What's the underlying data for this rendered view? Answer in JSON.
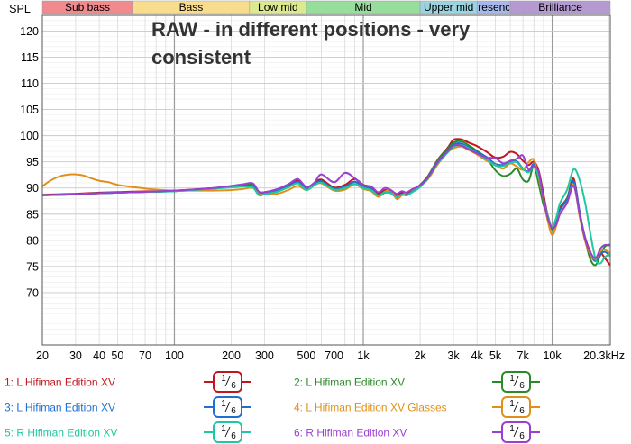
{
  "chart_data": {
    "type": "line",
    "title_lines": [
      "RAW - in different positions - very",
      "consistent"
    ],
    "ylabel": "SPL",
    "ylim": [
      60,
      123
    ],
    "xlim_hz": [
      20,
      20300
    ],
    "x_scale": "log",
    "y_ticks": [
      120,
      115,
      110,
      105,
      100,
      95,
      90,
      85,
      80,
      75,
      70
    ],
    "x_ticks": [
      {
        "hz": 20,
        "label": "20"
      },
      {
        "hz": 30,
        "label": "30"
      },
      {
        "hz": 40,
        "label": "40"
      },
      {
        "hz": 50,
        "label": "50"
      },
      {
        "hz": 70,
        "label": "70"
      },
      {
        "hz": 100,
        "label": "100"
      },
      {
        "hz": 200,
        "label": "200"
      },
      {
        "hz": 300,
        "label": "300"
      },
      {
        "hz": 500,
        "label": "500"
      },
      {
        "hz": 700,
        "label": "700"
      },
      {
        "hz": 1000,
        "label": "1k"
      },
      {
        "hz": 2000,
        "label": "2k"
      },
      {
        "hz": 3000,
        "label": "3k"
      },
      {
        "hz": 4000,
        "label": "4k"
      },
      {
        "hz": 5000,
        "label": "5k"
      },
      {
        "hz": 7000,
        "label": "7k"
      },
      {
        "hz": 10000,
        "label": "10k"
      },
      {
        "hz": 20300,
        "label": "20.3kHz"
      }
    ],
    "bands": [
      {
        "label": "Sub bass",
        "from_hz": 20,
        "to_hz": 60,
        "color": "#f08a8f"
      },
      {
        "label": "Bass",
        "from_hz": 60,
        "to_hz": 250,
        "color": "#f9dd8e"
      },
      {
        "label": "Low mid",
        "from_hz": 250,
        "to_hz": 500,
        "color": "#dde98f"
      },
      {
        "label": "Mid",
        "from_hz": 500,
        "to_hz": 2000,
        "color": "#97dd9b"
      },
      {
        "label": "Upper mid",
        "from_hz": 2000,
        "to_hz": 4000,
        "color": "#9ad4e0"
      },
      {
        "label": "Presence",
        "from_hz": 4000,
        "to_hz": 6000,
        "color": "#a8b8ec"
      },
      {
        "label": "Brilliance",
        "from_hz": 6000,
        "to_hz": 20300,
        "color": "#b49ad0"
      }
    ],
    "series": [
      {
        "name": "1: L Hifiman Edition XV",
        "smoothing": "1/6",
        "color": "#c0161f",
        "x": [
          20,
          30,
          40,
          60,
          100,
          150,
          200,
          230,
          260,
          280,
          300,
          350,
          400,
          450,
          500,
          550,
          600,
          700,
          800,
          900,
          1000,
          1100,
          1200,
          1300,
          1400,
          1500,
          1600,
          1700,
          1800,
          2000,
          2200,
          2500,
          2800,
          3000,
          3300,
          3600,
          4000,
          4500,
          5000,
          5500,
          6000,
          6500,
          7000,
          7500,
          8000,
          8500,
          9000,
          9500,
          10000,
          10500,
          11000,
          12000,
          13000,
          14000,
          15000,
          16000,
          17000,
          18000,
          19000,
          20300
        ],
        "y": [
          88.7,
          88.9,
          89.1,
          89.3,
          89.5,
          89.9,
          90.2,
          90.6,
          90.4,
          89.2,
          89.2,
          89.7,
          90.5,
          91.5,
          90.1,
          90.9,
          91.6,
          90.1,
          90.6,
          91.7,
          90.6,
          90.2,
          88.9,
          89.6,
          89.5,
          88.6,
          89.1,
          88.9,
          89.5,
          90.6,
          92.3,
          95.6,
          97.7,
          99.2,
          99.3,
          98.7,
          98.0,
          96.9,
          95.8,
          96.0,
          96.9,
          96.5,
          95.2,
          94.4,
          95.0,
          93.2,
          88.7,
          84.5,
          82.4,
          83.6,
          86.2,
          88.1,
          91.8,
          85.0,
          80.3,
          77.6,
          76.1,
          77.5,
          76.6,
          75.2
        ]
      },
      {
        "name": "2: L Hifiman Edition XV",
        "smoothing": "1/6",
        "color": "#2a8a2a",
        "x": [
          20,
          30,
          40,
          60,
          100,
          150,
          200,
          230,
          260,
          280,
          300,
          350,
          400,
          450,
          500,
          550,
          600,
          700,
          800,
          900,
          1000,
          1100,
          1200,
          1300,
          1400,
          1500,
          1600,
          1700,
          1800,
          2000,
          2200,
          2500,
          2800,
          3000,
          3300,
          3600,
          4000,
          4500,
          5000,
          5500,
          6000,
          6500,
          7000,
          7500,
          8000,
          8500,
          9000,
          9500,
          10000,
          10500,
          11000,
          12000,
          13000,
          14000,
          15000,
          16000,
          17000,
          18000,
          19000,
          20300
        ],
        "y": [
          88.6,
          88.8,
          89.0,
          89.2,
          89.4,
          89.8,
          90.3,
          90.5,
          90.6,
          88.9,
          89.0,
          89.3,
          90.2,
          91.1,
          89.9,
          90.6,
          91.2,
          89.9,
          90.1,
          91.2,
          90.2,
          89.8,
          88.4,
          89.1,
          89.0,
          88.2,
          88.7,
          88.6,
          89.2,
          90.6,
          92.3,
          95.5,
          97.5,
          98.7,
          98.9,
          98.2,
          97.1,
          95.7,
          93.4,
          92.3,
          92.7,
          93.7,
          91.6,
          91.4,
          94.2,
          90.6,
          86.7,
          84.6,
          82.0,
          83.8,
          85.9,
          88.1,
          91.1,
          85.2,
          79.8,
          76.2,
          75.3,
          77.2,
          78.8,
          79.2
        ]
      },
      {
        "name": "3: L Hifiman Edition XV",
        "smoothing": "1/6",
        "color": "#1f6fd0",
        "x": [
          20,
          30,
          40,
          60,
          100,
          150,
          200,
          230,
          260,
          280,
          300,
          350,
          400,
          450,
          500,
          550,
          600,
          700,
          800,
          900,
          1000,
          1100,
          1200,
          1300,
          1400,
          1500,
          1600,
          1700,
          1800,
          2000,
          2200,
          2500,
          2800,
          3000,
          3300,
          3600,
          4000,
          4500,
          5000,
          5500,
          6000,
          6500,
          7000,
          7500,
          8000,
          8500,
          9000,
          9500,
          10000,
          10500,
          11000,
          12000,
          13000,
          14000,
          15000,
          16000,
          17000,
          18000,
          19000,
          20300
        ],
        "y": [
          88.6,
          88.8,
          89.0,
          89.2,
          89.4,
          89.8,
          90.2,
          90.5,
          90.3,
          89.0,
          89.1,
          89.5,
          90.3,
          91.2,
          89.8,
          90.7,
          91.3,
          89.9,
          90.3,
          91.2,
          90.3,
          89.9,
          88.5,
          89.2,
          89.1,
          88.3,
          88.8,
          88.7,
          89.2,
          90.4,
          92.1,
          95.2,
          97.1,
          98.3,
          98.5,
          97.8,
          96.9,
          95.9,
          94.6,
          94.4,
          94.9,
          95.1,
          93.7,
          93.2,
          94.6,
          92.6,
          87.9,
          84.2,
          82.3,
          83.6,
          85.8,
          87.9,
          91.3,
          85.2,
          80.1,
          77.1,
          76.0,
          77.3,
          77.8,
          77.0
        ]
      },
      {
        "name": "4: L Hifiman Edition XV Glasses",
        "smoothing": "1/6",
        "color": "#e0901a",
        "x": [
          20,
          22,
          25,
          28,
          30,
          33,
          36,
          40,
          45,
          50,
          60,
          70,
          80,
          100,
          130,
          160,
          200,
          230,
          260,
          280,
          300,
          350,
          400,
          450,
          500,
          550,
          600,
          700,
          800,
          900,
          1000,
          1100,
          1200,
          1300,
          1400,
          1500,
          1600,
          1700,
          1800,
          2000,
          2200,
          2500,
          2800,
          3000,
          3300,
          3600,
          4000,
          4500,
          5000,
          5500,
          6000,
          6500,
          7000,
          7500,
          8000,
          8500,
          9000,
          9500,
          10000,
          10500,
          11000,
          12000,
          13000,
          14000,
          15000,
          16000,
          17000,
          18000,
          19000,
          20300
        ],
        "y": [
          90.3,
          91.4,
          92.3,
          92.6,
          92.6,
          92.4,
          91.9,
          91.4,
          91.1,
          90.6,
          90.2,
          89.9,
          89.7,
          89.5,
          89.5,
          89.5,
          89.6,
          89.8,
          90.0,
          88.8,
          88.8,
          88.9,
          89.6,
          90.4,
          89.6,
          90.5,
          90.9,
          89.5,
          89.7,
          90.7,
          89.8,
          89.4,
          88.3,
          89.3,
          89.6,
          87.9,
          88.6,
          89.2,
          89.6,
          90.5,
          91.7,
          94.7,
          96.8,
          97.6,
          97.9,
          97.3,
          96.4,
          95.2,
          94.4,
          93.7,
          94.7,
          94.1,
          93.5,
          94.9,
          95.4,
          91.8,
          87.6,
          83.5,
          81.0,
          82.7,
          85.2,
          87.2,
          90.6,
          84.3,
          79.6,
          77.2,
          76.4,
          77.9,
          78.2,
          77.5
        ]
      },
      {
        "name": "5: R Hifiman Edition XV",
        "smoothing": "1/6",
        "color": "#1ec8a0",
        "x": [
          20,
          30,
          40,
          60,
          100,
          150,
          200,
          230,
          260,
          280,
          300,
          350,
          400,
          450,
          500,
          550,
          600,
          700,
          800,
          900,
          1000,
          1100,
          1200,
          1300,
          1400,
          1500,
          1600,
          1700,
          1800,
          2000,
          2200,
          2500,
          2800,
          3000,
          3300,
          3600,
          4000,
          4500,
          5000,
          5500,
          6000,
          6500,
          7000,
          7500,
          8000,
          8500,
          9000,
          9500,
          10000,
          10500,
          11000,
          12000,
          13000,
          14000,
          15000,
          16000,
          17000,
          18000,
          19000,
          20300
        ],
        "y": [
          88.6,
          88.8,
          89.0,
          89.2,
          89.4,
          89.8,
          90.1,
          90.3,
          90.1,
          88.6,
          88.8,
          89.3,
          90.1,
          90.9,
          89.6,
          90.5,
          91.0,
          89.7,
          90.0,
          90.8,
          90.0,
          89.6,
          88.6,
          89.2,
          89.0,
          88.3,
          88.7,
          88.6,
          89.1,
          90.2,
          91.9,
          94.9,
          96.8,
          97.9,
          98.2,
          97.6,
          96.6,
          95.5,
          94.3,
          94.2,
          94.8,
          94.9,
          93.6,
          93.0,
          94.0,
          92.1,
          87.8,
          84.4,
          82.6,
          84.3,
          87.1,
          89.7,
          93.6,
          91.4,
          86.8,
          80.9,
          76.3,
          75.6,
          76.8,
          77.3
        ]
      },
      {
        "name": "6: R Hifiman Edition XV",
        "smoothing": "1/6",
        "color": "#9b3fd0",
        "x": [
          20,
          30,
          40,
          60,
          100,
          150,
          200,
          230,
          260,
          280,
          300,
          350,
          400,
          450,
          500,
          550,
          600,
          700,
          800,
          900,
          1000,
          1100,
          1200,
          1300,
          1400,
          1500,
          1600,
          1700,
          1800,
          2000,
          2200,
          2500,
          2800,
          3000,
          3300,
          3600,
          4000,
          4500,
          5000,
          5500,
          6000,
          6500,
          7000,
          7500,
          8000,
          8500,
          9000,
          9500,
          10000,
          10500,
          11000,
          12000,
          13000,
          14000,
          15000,
          16000,
          17000,
          18000,
          19000,
          20300
        ],
        "y": [
          88.6,
          88.8,
          89.0,
          89.2,
          89.5,
          89.9,
          90.4,
          90.7,
          90.9,
          89.3,
          89.2,
          89.8,
          90.7,
          91.7,
          90.2,
          91.0,
          92.6,
          91.1,
          92.9,
          91.9,
          90.5,
          90.3,
          89.2,
          90.0,
          89.6,
          88.9,
          89.4,
          89.1,
          89.7,
          90.5,
          92.0,
          95.1,
          97.0,
          98.1,
          98.1,
          97.4,
          96.6,
          95.8,
          95.7,
          94.7,
          95.2,
          95.6,
          96.2,
          93.5,
          94.2,
          92.9,
          87.7,
          84.1,
          82.3,
          83.0,
          85.0,
          87.2,
          90.4,
          84.8,
          79.9,
          77.5,
          76.6,
          78.4,
          79.1,
          79.0
        ]
      }
    ]
  }
}
